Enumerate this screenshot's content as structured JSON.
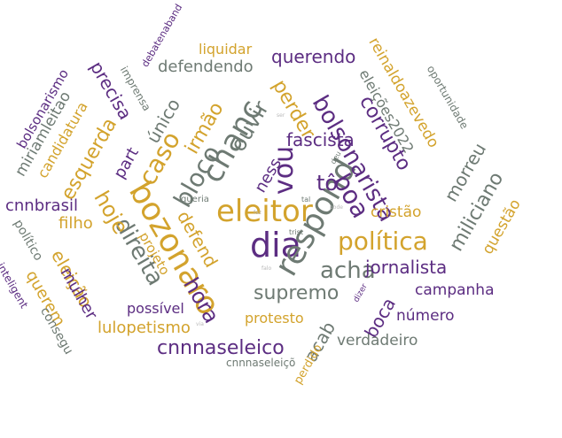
{
  "palette": {
    "gold": "#D3A32D",
    "purple": "#5C2D82",
    "gray": "#6E7A73",
    "light": "#B9B9B9"
  },
  "words": [
    {
      "text": "eleitor",
      "color": "gold"
    },
    {
      "text": "dia",
      "color": "purple"
    },
    {
      "text": "bozonaro",
      "color": "gold"
    },
    {
      "text": "respond",
      "color": "gray"
    },
    {
      "text": "chanc",
      "color": "gray"
    },
    {
      "text": "política",
      "color": "gold"
    },
    {
      "text": "vou",
      "color": "purple"
    },
    {
      "text": "acha",
      "color": "gray"
    },
    {
      "text": "caso",
      "color": "gold"
    },
    {
      "text": "boa",
      "color": "purple"
    },
    {
      "text": "bloco",
      "color": "gray"
    },
    {
      "text": "bolsonarista",
      "color": "purple"
    },
    {
      "text": "ouvir",
      "color": "gray"
    },
    {
      "text": "tô",
      "color": "purple"
    },
    {
      "text": "direita",
      "color": "gray"
    },
    {
      "text": "hoje",
      "color": "gold"
    },
    {
      "text": "hora",
      "color": "purple"
    },
    {
      "text": "supremo",
      "color": "gray"
    },
    {
      "text": "defend",
      "color": "gold"
    },
    {
      "text": "fascista",
      "color": "purple"
    },
    {
      "text": "irmão",
      "color": "gold"
    },
    {
      "text": "jornalista",
      "color": "purple"
    },
    {
      "text": "miliciano",
      "color": "gray"
    },
    {
      "text": "perder",
      "color": "gold"
    },
    {
      "text": "corrupto",
      "color": "purple"
    },
    {
      "text": "ness",
      "color": "purple"
    },
    {
      "text": "único",
      "color": "gray"
    },
    {
      "text": "morreu",
      "color": "gray"
    },
    {
      "text": "esquerda",
      "color": "gold"
    },
    {
      "text": "part",
      "color": "purple"
    },
    {
      "text": "querendo",
      "color": "purple"
    },
    {
      "text": "defendendo",
      "color": "gray"
    },
    {
      "text": "reinaldoazevedo",
      "color": "gold"
    },
    {
      "text": "eleições2022",
      "color": "gray"
    },
    {
      "text": "precisa",
      "color": "purple"
    },
    {
      "text": "candidatura",
      "color": "gold"
    },
    {
      "text": "miriamleitao",
      "color": "gray"
    },
    {
      "text": "bolsonarismo",
      "color": "purple"
    },
    {
      "text": "cnnbrasil",
      "color": "purple"
    },
    {
      "text": "filho",
      "color": "gold"
    },
    {
      "text": "eleição",
      "color": "gold"
    },
    {
      "text": "mulher",
      "color": "purple"
    },
    {
      "text": "querem",
      "color": "gold"
    },
    {
      "text": "político",
      "color": "gray"
    },
    {
      "text": "consegu",
      "color": "gray"
    },
    {
      "text": "inteligent",
      "color": "purple"
    },
    {
      "text": "projeto",
      "color": "gold"
    },
    {
      "text": "lulopetismo",
      "color": "gold"
    },
    {
      "text": "possível",
      "color": "purple"
    },
    {
      "text": "cnnnaseleico",
      "color": "purple"
    },
    {
      "text": "acab",
      "color": "gray"
    },
    {
      "text": "protesto",
      "color": "gold"
    },
    {
      "text": "boca",
      "color": "purple"
    },
    {
      "text": "campanha",
      "color": "purple"
    },
    {
      "text": "número",
      "color": "purple"
    },
    {
      "text": "verdadeiro",
      "color": "gray"
    },
    {
      "text": "cristão",
      "color": "gold"
    },
    {
      "text": "questão",
      "color": "gold"
    },
    {
      "text": "cnnnaseleiçõ",
      "color": "gray"
    },
    {
      "text": "perdido",
      "color": "gold"
    },
    {
      "text": "liquidar",
      "color": "gold"
    },
    {
      "text": "imprensa",
      "color": "gray"
    },
    {
      "text": "debatenaband",
      "color": "purple"
    },
    {
      "text": "oportunidade",
      "color": "gray"
    },
    {
      "text": "queria",
      "color": "gray"
    },
    {
      "text": "tal",
      "color": "gray"
    },
    {
      "text": "trist",
      "color": "gray"
    },
    {
      "text": "dizer",
      "color": "purple"
    },
    {
      "text": "deu",
      "color": "gray"
    },
    {
      "text": "faz",
      "color": "light"
    },
    {
      "text": "falo",
      "color": "light"
    },
    {
      "text": "pode",
      "color": "light"
    },
    {
      "text": "via",
      "color": "light"
    },
    {
      "text": "ser",
      "color": "light"
    }
  ]
}
